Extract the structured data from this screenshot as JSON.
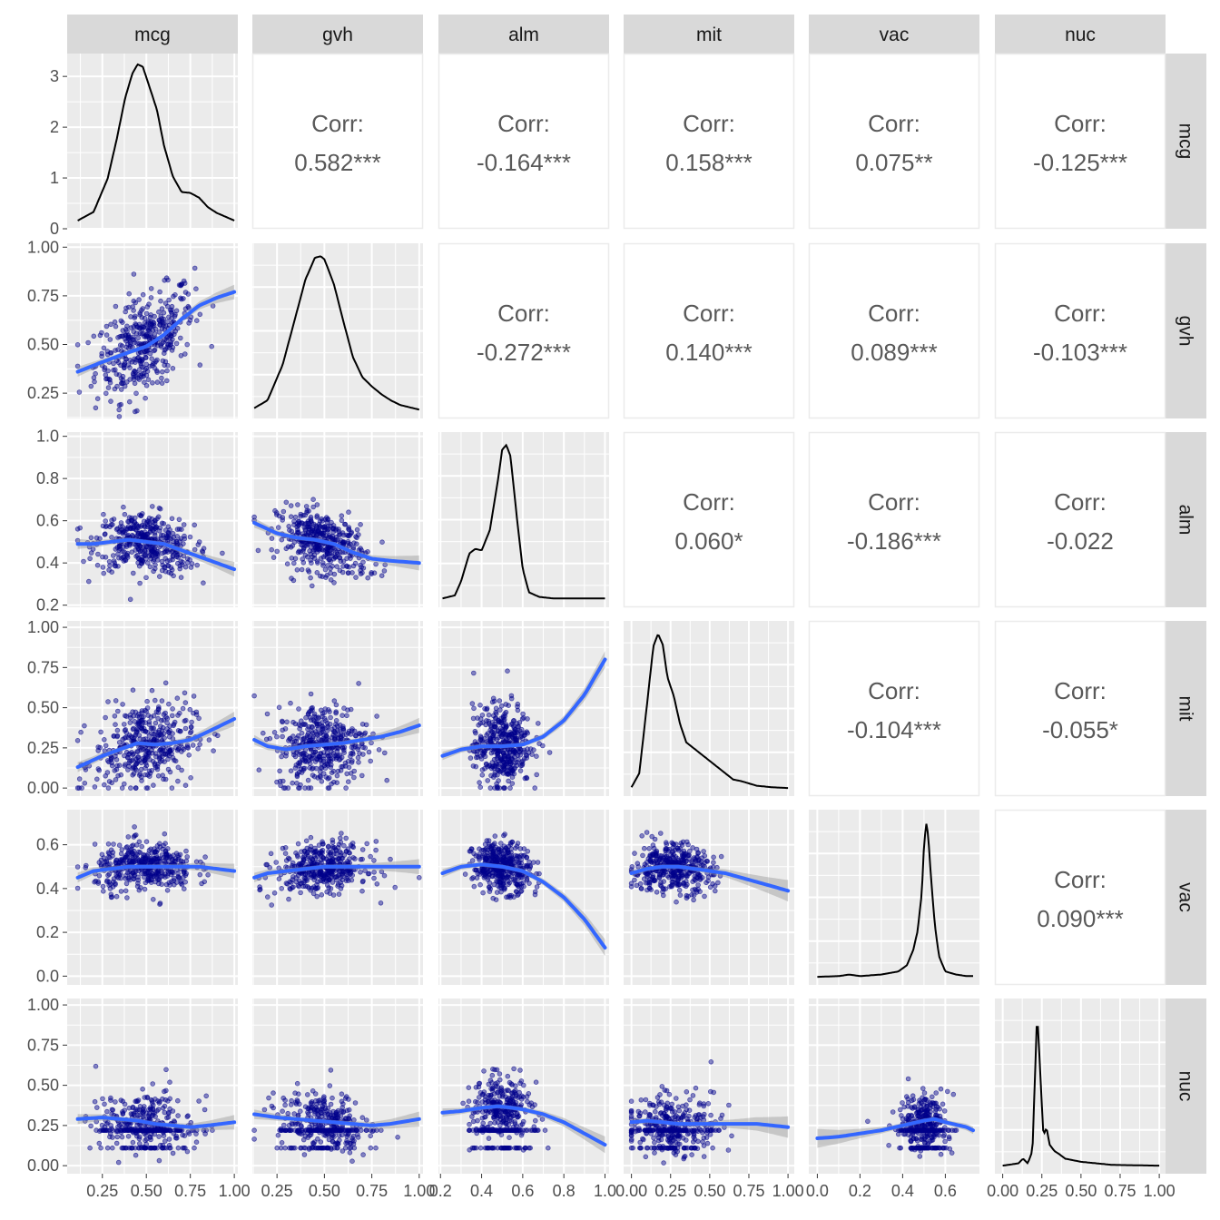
{
  "chart_data": {
    "type": "scatter-matrix",
    "variables": [
      "mcg",
      "gvh",
      "alm",
      "mit",
      "vac",
      "nuc"
    ],
    "colors": {
      "panel_bg": "#EBEBEB",
      "strip_bg": "#D9D9D9",
      "points": "#00008B",
      "smooth": "#3366FF",
      "ribbon": "#999999",
      "density": "#000000"
    },
    "axes": {
      "mcg": {
        "range": [
          0.05,
          1.02
        ],
        "x_ticks": [
          0.25,
          0.5,
          0.75,
          1.0
        ],
        "x_tick_labels": [
          "0.25",
          "0.50",
          "0.75",
          "1.00"
        ]
      },
      "gvh": {
        "range": [
          0.12,
          1.02
        ],
        "x_ticks": [
          0.25,
          0.5,
          0.75,
          1.0
        ],
        "x_tick_labels": [
          "0.25",
          "0.50",
          "0.75",
          "1.00"
        ],
        "y_ticks": [
          0.25,
          0.5,
          0.75,
          1.0
        ],
        "y_tick_labels": [
          "0.25",
          "0.50",
          "0.75",
          "1.00"
        ]
      },
      "alm": {
        "range": [
          0.19,
          1.02
        ],
        "x_ticks": [
          0.2,
          0.4,
          0.6,
          0.8,
          1.0
        ],
        "x_tick_labels": [
          "0.2",
          "0.4",
          "0.6",
          "0.8",
          "1.0"
        ],
        "y_ticks": [
          0.2,
          0.4,
          0.6,
          0.8,
          1.0
        ],
        "y_tick_labels": [
          "0.2",
          "0.4",
          "0.6",
          "0.8",
          "1.0"
        ]
      },
      "mit": {
        "range": [
          -0.05,
          1.04
        ],
        "x_ticks": [
          0.0,
          0.25,
          0.5,
          0.75,
          1.0
        ],
        "x_tick_labels": [
          "0.00",
          "0.25",
          "0.50",
          "0.75",
          "1.00"
        ],
        "y_ticks": [
          0.0,
          0.25,
          0.5,
          0.75,
          1.0
        ],
        "y_tick_labels": [
          "0.00",
          "0.25",
          "0.50",
          "0.75",
          "1.00"
        ]
      },
      "vac": {
        "range": [
          -0.04,
          0.76
        ],
        "x_ticks": [
          0.0,
          0.2,
          0.4,
          0.6
        ],
        "x_tick_labels": [
          "0.0",
          "0.2",
          "0.4",
          "0.6"
        ],
        "y_ticks": [
          0.0,
          0.2,
          0.4,
          0.6
        ],
        "y_tick_labels": [
          "0.0",
          "0.2",
          "0.4",
          "0.6"
        ]
      },
      "nuc": {
        "range": [
          -0.05,
          1.04
        ],
        "x_ticks": [
          0.0,
          0.25,
          0.5,
          0.75,
          1.0
        ],
        "x_tick_labels": [
          "0.00",
          "0.25",
          "0.50",
          "0.75",
          "1.00"
        ],
        "y_ticks": [
          0.0,
          0.25,
          0.5,
          0.75,
          1.0
        ],
        "y_tick_labels": [
          "0.00",
          "0.25",
          "0.50",
          "0.75",
          "1.00"
        ]
      }
    },
    "density_ticks": {
      "values": [
        0,
        1,
        2,
        3
      ],
      "labels": [
        "0",
        "1",
        "2",
        "3"
      ],
      "max": 3.45
    },
    "correlations": [
      {
        "row": "mcg",
        "col": "gvh",
        "label": "Corr:",
        "value": "0.582***"
      },
      {
        "row": "mcg",
        "col": "alm",
        "label": "Corr:",
        "value": "-0.164***"
      },
      {
        "row": "mcg",
        "col": "mit",
        "label": "Corr:",
        "value": "0.158***"
      },
      {
        "row": "mcg",
        "col": "vac",
        "label": "Corr:",
        "value": "0.075**"
      },
      {
        "row": "mcg",
        "col": "nuc",
        "label": "Corr:",
        "value": "-0.125***"
      },
      {
        "row": "gvh",
        "col": "alm",
        "label": "Corr:",
        "value": "-0.272***"
      },
      {
        "row": "gvh",
        "col": "mit",
        "label": "Corr:",
        "value": "0.140***"
      },
      {
        "row": "gvh",
        "col": "vac",
        "label": "Corr:",
        "value": "0.089***"
      },
      {
        "row": "gvh",
        "col": "nuc",
        "label": "Corr:",
        "value": "-0.103***"
      },
      {
        "row": "alm",
        "col": "mit",
        "label": "Corr:",
        "value": "0.060*"
      },
      {
        "row": "alm",
        "col": "vac",
        "label": "Corr:",
        "value": "-0.186***"
      },
      {
        "row": "alm",
        "col": "nuc",
        "label": "Corr:",
        "value": "-0.022"
      },
      {
        "row": "mit",
        "col": "vac",
        "label": "Corr:",
        "value": "-0.104***"
      },
      {
        "row": "mit",
        "col": "nuc",
        "label": "Corr:",
        "value": "-0.055*"
      },
      {
        "row": "vac",
        "col": "nuc",
        "label": "Corr:",
        "value": "0.090***"
      }
    ],
    "densities": {
      "mcg": {
        "x": [
          0.11,
          0.2,
          0.28,
          0.33,
          0.38,
          0.42,
          0.45,
          0.48,
          0.52,
          0.56,
          0.6,
          0.65,
          0.7,
          0.75,
          0.8,
          0.85,
          0.9,
          1.0
        ],
        "y": [
          0.02,
          0.2,
          0.9,
          1.7,
          2.6,
          3.1,
          3.3,
          3.25,
          2.8,
          2.35,
          1.6,
          0.95,
          0.62,
          0.6,
          0.5,
          0.3,
          0.18,
          0.02
        ]
      },
      "gvh": {
        "x": [
          0.13,
          0.2,
          0.28,
          0.35,
          0.4,
          0.45,
          0.48,
          0.5,
          0.55,
          0.6,
          0.65,
          0.7,
          0.75,
          0.8,
          0.85,
          0.9,
          1.0
        ],
        "y": [
          0.02,
          0.07,
          0.3,
          0.62,
          0.85,
          0.99,
          1.0,
          0.98,
          0.82,
          0.58,
          0.35,
          0.22,
          0.16,
          0.11,
          0.07,
          0.04,
          0.01
        ]
      },
      "alm": {
        "x": [
          0.21,
          0.27,
          0.3,
          0.34,
          0.37,
          0.4,
          0.44,
          0.48,
          0.5,
          0.52,
          0.54,
          0.57,
          0.6,
          0.63,
          0.68,
          0.75,
          0.85,
          1.0
        ],
        "y": [
          0.01,
          0.03,
          0.12,
          0.3,
          0.33,
          0.32,
          0.45,
          0.78,
          0.97,
          1.0,
          0.93,
          0.55,
          0.2,
          0.05,
          0.02,
          0.01,
          0.01,
          0.01
        ]
      },
      "mit": {
        "x": [
          0.0,
          0.05,
          0.1,
          0.14,
          0.17,
          0.2,
          0.23,
          0.27,
          0.31,
          0.35,
          0.4,
          0.45,
          0.5,
          0.55,
          0.6,
          0.65,
          0.7,
          0.8,
          0.9,
          1.0
        ],
        "y": [
          0.01,
          0.1,
          0.55,
          0.92,
          1.0,
          0.93,
          0.72,
          0.6,
          0.42,
          0.3,
          0.26,
          0.22,
          0.18,
          0.14,
          0.1,
          0.06,
          0.05,
          0.02,
          0.01,
          0.005
        ]
      },
      "vac": {
        "x": [
          0.0,
          0.1,
          0.15,
          0.2,
          0.3,
          0.38,
          0.42,
          0.45,
          0.47,
          0.49,
          0.5,
          0.51,
          0.52,
          0.53,
          0.55,
          0.57,
          0.6,
          0.65,
          0.7,
          0.73
        ],
        "y": [
          0.005,
          0.01,
          0.02,
          0.01,
          0.02,
          0.04,
          0.08,
          0.18,
          0.3,
          0.55,
          0.85,
          1.0,
          0.92,
          0.7,
          0.35,
          0.14,
          0.04,
          0.02,
          0.01,
          0.01
        ]
      },
      "nuc": {
        "x": [
          0.0,
          0.1,
          0.13,
          0.16,
          0.19,
          0.21,
          0.22,
          0.24,
          0.26,
          0.28,
          0.3,
          0.33,
          0.36,
          0.4,
          0.5,
          0.6,
          0.7,
          1.0
        ],
        "y": [
          0.005,
          0.02,
          0.05,
          0.02,
          0.1,
          0.7,
          1.0,
          0.6,
          0.2,
          0.25,
          0.14,
          0.1,
          0.08,
          0.05,
          0.03,
          0.02,
          0.01,
          0.005
        ]
      }
    },
    "smooths": [
      {
        "row": "gvh",
        "col": "mcg",
        "x": [
          0.11,
          0.25,
          0.4,
          0.5,
          0.6,
          0.7,
          0.8,
          0.9,
          1.0
        ],
        "y": [
          0.36,
          0.41,
          0.46,
          0.49,
          0.55,
          0.63,
          0.7,
          0.74,
          0.77
        ]
      },
      {
        "row": "alm",
        "col": "mcg",
        "x": [
          0.11,
          0.2,
          0.3,
          0.4,
          0.5,
          0.6,
          0.7,
          0.8,
          0.9,
          1.0
        ],
        "y": [
          0.49,
          0.49,
          0.5,
          0.51,
          0.5,
          0.49,
          0.46,
          0.43,
          0.4,
          0.37
        ]
      },
      {
        "row": "alm",
        "col": "gvh",
        "x": [
          0.13,
          0.25,
          0.35,
          0.45,
          0.55,
          0.65,
          0.75,
          0.85,
          1.0
        ],
        "y": [
          0.59,
          0.54,
          0.52,
          0.51,
          0.49,
          0.45,
          0.42,
          0.41,
          0.4
        ]
      },
      {
        "row": "mit",
        "col": "mcg",
        "x": [
          0.11,
          0.25,
          0.35,
          0.45,
          0.55,
          0.65,
          0.75,
          0.85,
          1.0
        ],
        "y": [
          0.13,
          0.2,
          0.24,
          0.28,
          0.27,
          0.28,
          0.3,
          0.35,
          0.43
        ]
      },
      {
        "row": "mit",
        "col": "gvh",
        "x": [
          0.13,
          0.2,
          0.3,
          0.4,
          0.5,
          0.6,
          0.7,
          0.8,
          0.9,
          1.0
        ],
        "y": [
          0.3,
          0.26,
          0.24,
          0.26,
          0.27,
          0.28,
          0.3,
          0.32,
          0.35,
          0.39
        ]
      },
      {
        "row": "mit",
        "col": "alm",
        "x": [
          0.21,
          0.3,
          0.4,
          0.5,
          0.6,
          0.7,
          0.8,
          0.9,
          1.0
        ],
        "y": [
          0.2,
          0.24,
          0.26,
          0.26,
          0.27,
          0.32,
          0.42,
          0.58,
          0.8
        ]
      },
      {
        "row": "vac",
        "col": "mcg",
        "x": [
          0.11,
          0.2,
          0.3,
          0.4,
          0.5,
          0.6,
          0.7,
          0.8,
          0.9,
          1.0
        ],
        "y": [
          0.45,
          0.48,
          0.49,
          0.5,
          0.5,
          0.5,
          0.5,
          0.5,
          0.49,
          0.48
        ]
      },
      {
        "row": "vac",
        "col": "gvh",
        "x": [
          0.13,
          0.2,
          0.3,
          0.4,
          0.5,
          0.6,
          0.7,
          0.8,
          0.9,
          1.0
        ],
        "y": [
          0.45,
          0.47,
          0.48,
          0.49,
          0.5,
          0.5,
          0.5,
          0.5,
          0.5,
          0.5
        ]
      },
      {
        "row": "vac",
        "col": "alm",
        "x": [
          0.21,
          0.3,
          0.4,
          0.5,
          0.6,
          0.7,
          0.8,
          0.9,
          1.0
        ],
        "y": [
          0.47,
          0.5,
          0.51,
          0.5,
          0.48,
          0.43,
          0.36,
          0.26,
          0.13
        ]
      },
      {
        "row": "vac",
        "col": "mit",
        "x": [
          0.0,
          0.1,
          0.2,
          0.3,
          0.4,
          0.5,
          0.6,
          0.7,
          0.8,
          0.9,
          1.0
        ],
        "y": [
          0.47,
          0.49,
          0.5,
          0.5,
          0.49,
          0.48,
          0.47,
          0.45,
          0.43,
          0.41,
          0.39
        ]
      },
      {
        "row": "nuc",
        "col": "mcg",
        "x": [
          0.11,
          0.25,
          0.35,
          0.45,
          0.55,
          0.65,
          0.75,
          0.85,
          1.0
        ],
        "y": [
          0.29,
          0.3,
          0.29,
          0.28,
          0.26,
          0.25,
          0.24,
          0.25,
          0.27
        ]
      },
      {
        "row": "nuc",
        "col": "gvh",
        "x": [
          0.13,
          0.25,
          0.35,
          0.45,
          0.55,
          0.65,
          0.75,
          0.85,
          1.0
        ],
        "y": [
          0.32,
          0.3,
          0.29,
          0.28,
          0.27,
          0.26,
          0.25,
          0.26,
          0.29
        ]
      },
      {
        "row": "nuc",
        "col": "alm",
        "x": [
          0.21,
          0.3,
          0.4,
          0.48,
          0.55,
          0.6,
          0.7,
          0.8,
          0.9,
          1.0
        ],
        "y": [
          0.33,
          0.34,
          0.36,
          0.37,
          0.36,
          0.35,
          0.32,
          0.27,
          0.2,
          0.13
        ]
      },
      {
        "row": "nuc",
        "col": "mit",
        "x": [
          0.0,
          0.1,
          0.2,
          0.3,
          0.4,
          0.5,
          0.6,
          0.7,
          0.8,
          0.9,
          1.0
        ],
        "y": [
          0.27,
          0.28,
          0.27,
          0.26,
          0.26,
          0.26,
          0.26,
          0.26,
          0.26,
          0.25,
          0.24
        ]
      },
      {
        "row": "nuc",
        "col": "vac",
        "x": [
          0.0,
          0.1,
          0.2,
          0.3,
          0.4,
          0.5,
          0.55,
          0.6,
          0.7,
          0.73
        ],
        "y": [
          0.17,
          0.18,
          0.2,
          0.22,
          0.25,
          0.28,
          0.29,
          0.27,
          0.24,
          0.22
        ]
      }
    ],
    "scatter": {
      "marginals": {
        "mcg": {
          "center": 0.49,
          "spread": 0.14,
          "min": 0.11,
          "max": 1.0
        },
        "gvh": {
          "center": 0.49,
          "spread": 0.12,
          "min": 0.13,
          "max": 1.0
        },
        "alm": {
          "center": 0.5,
          "spread": 0.07,
          "min": 0.21,
          "max": 1.0
        },
        "mit": {
          "center": 0.26,
          "spread": 0.13,
          "min": 0.0,
          "max": 1.0
        },
        "vac": {
          "center": 0.5,
          "spread": 0.055,
          "min": 0.0,
          "max": 0.73
        },
        "nuc": {
          "center": 0.27,
          "spread": 0.09,
          "min": 0.0,
          "max": 1.0
        }
      }
    }
  }
}
